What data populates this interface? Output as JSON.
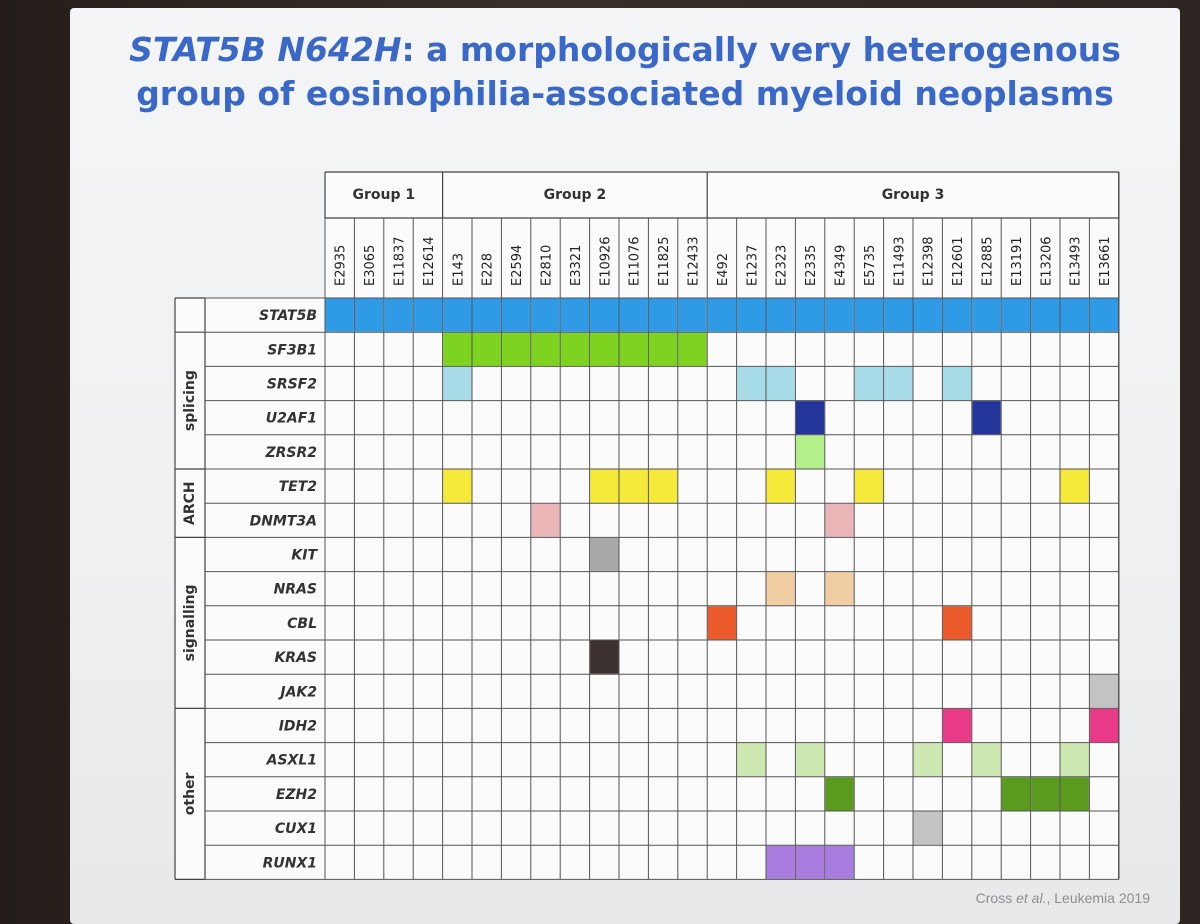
{
  "title": {
    "gene": "STAT5B N642H",
    "line1_rest": ": a morphologically very heterogenous",
    "line2": "group of eosinophilia-associated myeloid neoplasms"
  },
  "groups": [
    {
      "label": "Group 1",
      "samples": [
        "E2935",
        "E3065",
        "E11837",
        "E12614"
      ]
    },
    {
      "label": "Group 2",
      "samples": [
        "E143",
        "E228",
        "E2594",
        "E2810",
        "E3321",
        "E10926",
        "E11076",
        "E11825",
        "E12433"
      ]
    },
    {
      "label": "Group 3",
      "samples": [
        "E492",
        "E1237",
        "E2323",
        "E2335",
        "E4349",
        "E5735",
        "E11493",
        "E12398",
        "E12601",
        "E12885",
        "E13191",
        "E13206",
        "E13493",
        "E13661"
      ]
    }
  ],
  "categories": [
    {
      "label": "splicing",
      "genes": [
        "SF3B1",
        "SRSF2",
        "U2AF1",
        "ZRSR2"
      ]
    },
    {
      "label": "ARCH",
      "genes": [
        "TET2",
        "DNMT3A"
      ]
    },
    {
      "label": "signalling",
      "genes": [
        "KIT",
        "NRAS",
        "CBL",
        "KRAS",
        "JAK2"
      ]
    },
    {
      "label": "other",
      "genes": [
        "IDH2",
        "ASXL1",
        "EZH2",
        "CUX1",
        "RUNX1"
      ]
    }
  ],
  "header_gene": "STAT5B",
  "mutations": {
    "STAT5B": {
      "color": "#2f9be6",
      "samples": [
        "E2935",
        "E3065",
        "E11837",
        "E12614",
        "E143",
        "E228",
        "E2594",
        "E2810",
        "E3321",
        "E10926",
        "E11076",
        "E11825",
        "E12433",
        "E492",
        "E1237",
        "E2323",
        "E2335",
        "E4349",
        "E5735",
        "E11493",
        "E12398",
        "E12601",
        "E12885",
        "E13191",
        "E13206",
        "E13493",
        "E13661"
      ]
    },
    "SF3B1": {
      "color": "#7ed321",
      "samples": [
        "E143",
        "E228",
        "E2594",
        "E2810",
        "E3321",
        "E10926",
        "E11076",
        "E11825",
        "E12433"
      ]
    },
    "SRSF2": {
      "color": "#a8dbe8",
      "samples": [
        "E143",
        "E1237",
        "E2323",
        "E5735",
        "E11493",
        "E12601"
      ]
    },
    "U2AF1": {
      "color": "#23359a",
      "samples": [
        "E2335",
        "E12885"
      ]
    },
    "ZRSR2": {
      "color": "#b3f08a",
      "samples": [
        "E2335"
      ]
    },
    "TET2": {
      "color": "#f5e93a",
      "samples": [
        "E143",
        "E10926",
        "E11076",
        "E11825",
        "E2323",
        "E5735",
        "E13493"
      ]
    },
    "DNMT3A": {
      "color": "#eab6b8",
      "samples": [
        "E2810",
        "E4349"
      ]
    },
    "KIT": {
      "color": "#a9a9a9",
      "samples": [
        "E10926"
      ]
    },
    "NRAS": {
      "color": "#f0cda2",
      "samples": [
        "E2323",
        "E4349"
      ]
    },
    "CBL": {
      "color": "#ea5a2a",
      "samples": [
        "E492",
        "E12601"
      ]
    },
    "KRAS": {
      "color": "#3b3230",
      "samples": [
        "E10926"
      ]
    },
    "JAK2": {
      "color": "#c3c3c3",
      "samples": [
        "E13661"
      ]
    },
    "IDH2": {
      "color": "#e83a86",
      "samples": [
        "E12601",
        "E13661"
      ]
    },
    "ASXL1": {
      "color": "#cde8b0",
      "samples": [
        "E1237",
        "E2335",
        "E12398",
        "E12885",
        "E13493"
      ]
    },
    "EZH2": {
      "color": "#5a9a1f",
      "samples": [
        "E4349",
        "E13206",
        "E13493",
        "E13191"
      ]
    },
    "CUX1": {
      "color": "#c3c3c3",
      "samples": [
        "E12398"
      ]
    },
    "RUNX1": {
      "color": "#a97de0",
      "samples": [
        "E2323",
        "E2335",
        "E4349"
      ]
    }
  },
  "citation": {
    "authors": "Cross ",
    "etal": "et al.",
    "rest": ", Leukemia 2019"
  }
}
